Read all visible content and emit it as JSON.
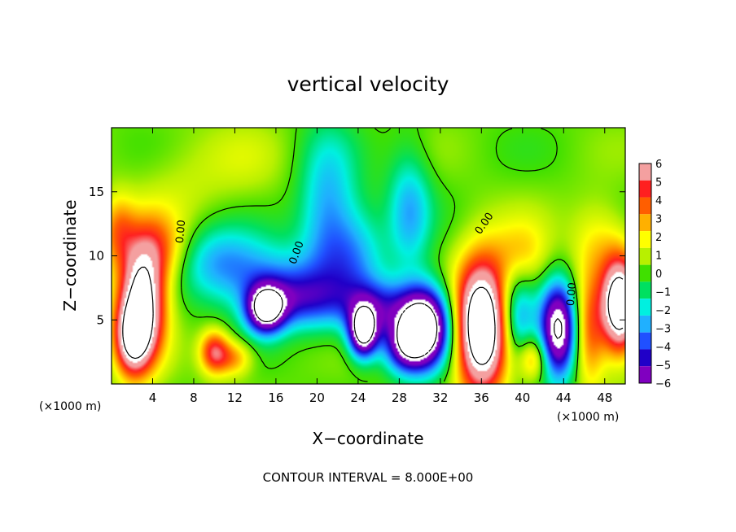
{
  "chart_data": {
    "type": "heatmap",
    "title": "vertical velocity",
    "xlabel": "X−coordinate",
    "ylabel": "Z−coordinate",
    "x_unit": "(×1000 m)",
    "y_unit": "(×1000 m)",
    "xlim": [
      0,
      50
    ],
    "ylim": [
      0,
      20
    ],
    "x_ticks": [
      "4",
      "8",
      "12",
      "16",
      "20",
      "24",
      "28",
      "32",
      "36",
      "40",
      "44",
      "48"
    ],
    "y_ticks": [
      "5",
      "10",
      "15"
    ],
    "colorbar": {
      "levels": [
        "6",
        "5",
        "4",
        "3",
        "2",
        "1",
        "0",
        "−1",
        "−2",
        "−3",
        "−4",
        "−5",
        "−6"
      ],
      "range": [
        -6,
        6
      ],
      "colors": [
        "#f4a0a0",
        "#ff2020",
        "#ff5e00",
        "#ffb000",
        "#ffff00",
        "#b8f000",
        "#40e000",
        "#00e060",
        "#00f0e0",
        "#20b0ff",
        "#2050ff",
        "#2000c8",
        "#8000c0"
      ]
    },
    "contour_labels": [
      "0.00",
      "0.00",
      "0.00",
      "0.00"
    ],
    "annotation": "CONTOUR INTERVAL = 8.000E+00",
    "features": [
      {
        "x": 3.0,
        "z": 6.5,
        "value": 9,
        "sx": 1.6,
        "sz": 3.2
      },
      {
        "x": 2.0,
        "z": 3.5,
        "value": 6,
        "sx": 1.2,
        "sz": 2.0
      },
      {
        "x": 4.8,
        "z": 10.5,
        "value": 3,
        "sx": 2.0,
        "sz": 2.0
      },
      {
        "x": 0.6,
        "z": 12.0,
        "value": 3,
        "sx": 1.2,
        "sz": 2.0
      },
      {
        "x": 10.0,
        "z": 2.5,
        "value": 5,
        "sx": 1.0,
        "sz": 1.2
      },
      {
        "x": 12.0,
        "z": 2.0,
        "value": 3,
        "sx": 1.2,
        "sz": 1.0
      },
      {
        "x": 15.0,
        "z": 5.8,
        "value": -8,
        "sx": 1.3,
        "sz": 1.3
      },
      {
        "x": 18.0,
        "z": 6.5,
        "value": -4,
        "sx": 3.0,
        "sz": 1.6
      },
      {
        "x": 14.0,
        "z": 8.5,
        "value": -3,
        "sx": 4.0,
        "sz": 2.0
      },
      {
        "x": 10.0,
        "z": 10.0,
        "value": -2,
        "sx": 3.0,
        "sz": 2.0
      },
      {
        "x": 21.0,
        "z": 13.0,
        "value": -3.5,
        "sx": 2.0,
        "sz": 4.5
      },
      {
        "x": 24.0,
        "z": 10.0,
        "value": -2.5,
        "sx": 2.0,
        "sz": 3.0
      },
      {
        "x": 24.5,
        "z": 4.0,
        "value": -9,
        "sx": 1.0,
        "sz": 1.4
      },
      {
        "x": 26.0,
        "z": 6.0,
        "value": -4,
        "sx": 2.5,
        "sz": 1.5
      },
      {
        "x": 30.5,
        "z": 4.5,
        "value": -10,
        "sx": 1.8,
        "sz": 2.2
      },
      {
        "x": 28.5,
        "z": 3.0,
        "value": -5,
        "sx": 1.5,
        "sz": 1.5
      },
      {
        "x": 29.0,
        "z": 13.5,
        "value": -3,
        "sx": 1.5,
        "sz": 3.5
      },
      {
        "x": 36.0,
        "z": 4.5,
        "value": 11,
        "sx": 1.8,
        "sz": 3.6
      },
      {
        "x": 41.0,
        "z": 2.0,
        "value": 3,
        "sx": 1.0,
        "sz": 1.2
      },
      {
        "x": 39.5,
        "z": 5.0,
        "value": -4,
        "sx": 1.2,
        "sz": 2.5
      },
      {
        "x": 43.5,
        "z": 4.2,
        "value": -9,
        "sx": 1.3,
        "sz": 2.6
      },
      {
        "x": 46.5,
        "z": 4.0,
        "value": 4,
        "sx": 1.2,
        "sz": 3.0
      },
      {
        "x": 49.5,
        "z": 6.0,
        "value": 10,
        "sx": 1.2,
        "sz": 2.5
      },
      {
        "x": 47.5,
        "z": 11.0,
        "value": 2,
        "sx": 2.0,
        "sz": 2.5
      },
      {
        "x": 40.0,
        "z": 10.0,
        "value": 2.5,
        "sx": 2.0,
        "sz": 2.0
      },
      {
        "x": 13.0,
        "z": 17.0,
        "value": 0.8,
        "sx": 3.0,
        "sz": 2.5
      },
      {
        "x": 7.0,
        "z": 16.0,
        "value": 0.8,
        "sx": 3.0,
        "sz": 3.0
      }
    ]
  }
}
